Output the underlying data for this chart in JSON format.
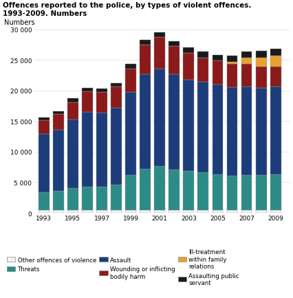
{
  "title_line1": "Offences reported to the police, by types of violent offences.",
  "title_line2": "1993-2009. Numbers",
  "ylabel": "Numbers",
  "years": [
    1993,
    1994,
    1995,
    1996,
    1997,
    1998,
    1999,
    2000,
    2001,
    2002,
    2003,
    2004,
    2005,
    2006,
    2007,
    2008,
    2009
  ],
  "categories": [
    "Other offences of violence",
    "Threats",
    "Assault",
    "Wounding or inflicting\nbodily harm",
    "Ill-treatment\nwithin family\nrelations",
    "Assaulting public\nservant"
  ],
  "colors": [
    "#f2f2f2",
    "#2d8b87",
    "#1c3d7a",
    "#8b1a1a",
    "#e8a030",
    "#1a1a1a"
  ],
  "edgecolor": "#999999",
  "data": [
    [
      400,
      400,
      400,
      400,
      400,
      400,
      400,
      400,
      400,
      400,
      400,
      400,
      400,
      400,
      400,
      400,
      400
    ],
    [
      3000,
      3200,
      3600,
      3900,
      3900,
      4200,
      5800,
      6800,
      7200,
      6700,
      6400,
      6200,
      5900,
      5700,
      5800,
      5800,
      5900
    ],
    [
      9500,
      10000,
      11200,
      12200,
      12100,
      12600,
      13500,
      15500,
      16000,
      15500,
      15000,
      14800,
      14700,
      14400,
      14400,
      14200,
      14300
    ],
    [
      2200,
      2500,
      2900,
      3300,
      3300,
      3400,
      3900,
      4800,
      5100,
      4600,
      4300,
      4000,
      3900,
      3800,
      3700,
      3500,
      3300
    ],
    [
      0,
      0,
      0,
      0,
      0,
      0,
      0,
      0,
      0,
      0,
      0,
      0,
      0,
      400,
      1000,
      1500,
      1800
    ],
    [
      500,
      550,
      600,
      600,
      600,
      650,
      700,
      750,
      800,
      850,
      900,
      900,
      900,
      950,
      1000,
      1050,
      1100
    ]
  ],
  "ylim": [
    0,
    30000
  ],
  "yticks": [
    0,
    5000,
    10000,
    15000,
    20000,
    25000,
    30000
  ],
  "ytick_labels": [
    "0",
    "5 000",
    "10 000",
    "15 000",
    "20 000",
    "25 000",
    "30 000"
  ],
  "xtick_years": [
    1993,
    1995,
    1997,
    1999,
    2001,
    2003,
    2005,
    2007,
    2009
  ],
  "bar_width": 0.75,
  "background_color": "#ffffff",
  "grid_color": "#dddddd"
}
